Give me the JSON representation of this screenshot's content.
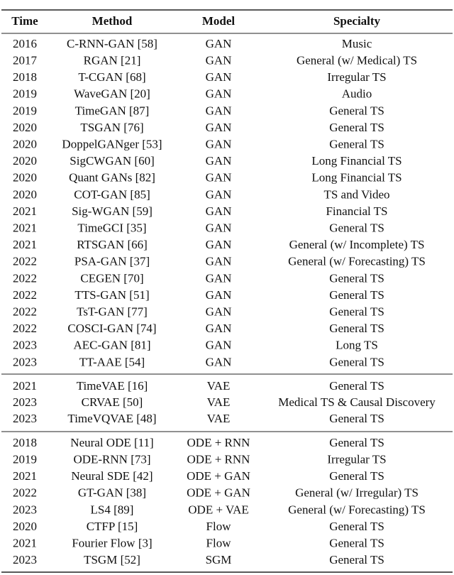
{
  "table": {
    "header": [
      "Time",
      "Method",
      "Model",
      "Specialty"
    ],
    "groups": [
      [
        [
          "2016",
          "C-RNN-GAN [58]",
          "GAN",
          "Music"
        ],
        [
          "2017",
          "RGAN [21]",
          "GAN",
          "General (w/ Medical) TS"
        ],
        [
          "2018",
          "T-CGAN [68]",
          "GAN",
          "Irregular TS"
        ],
        [
          "2019",
          "WaveGAN [20]",
          "GAN",
          "Audio"
        ],
        [
          "2019",
          "TimeGAN [87]",
          "GAN",
          "General TS"
        ],
        [
          "2020",
          "TSGAN [76]",
          "GAN",
          "General TS"
        ],
        [
          "2020",
          "DoppelGANger [53]",
          "GAN",
          "General TS"
        ],
        [
          "2020",
          "SigCWGAN [60]",
          "GAN",
          "Long Financial TS"
        ],
        [
          "2020",
          "Quant GANs [82]",
          "GAN",
          "Long Financial TS"
        ],
        [
          "2020",
          "COT-GAN [85]",
          "GAN",
          "TS and Video"
        ],
        [
          "2021",
          "Sig-WGAN [59]",
          "GAN",
          "Financial TS"
        ],
        [
          "2021",
          "TimeGCI [35]",
          "GAN",
          "General TS"
        ],
        [
          "2021",
          "RTSGAN [66]",
          "GAN",
          "General (w/ Incomplete) TS"
        ],
        [
          "2022",
          "PSA-GAN [37]",
          "GAN",
          "General (w/ Forecasting) TS"
        ],
        [
          "2022",
          "CEGEN [70]",
          "GAN",
          "General TS"
        ],
        [
          "2022",
          "TTS-GAN [51]",
          "GAN",
          "General TS"
        ],
        [
          "2022",
          "TsT-GAN [77]",
          "GAN",
          "General TS"
        ],
        [
          "2022",
          "COSCI-GAN [74]",
          "GAN",
          "General TS"
        ],
        [
          "2023",
          "AEC-GAN [81]",
          "GAN",
          "Long TS"
        ],
        [
          "2023",
          "TT-AAE [54]",
          "GAN",
          "General TS"
        ]
      ],
      [
        [
          "2021",
          "TimeVAE [16]",
          "VAE",
          "General TS"
        ],
        [
          "2023",
          "CRVAE [50]",
          "VAE",
          "Medical TS & Causal Discovery"
        ],
        [
          "2023",
          "TimeVQVAE [48]",
          "VAE",
          "General TS"
        ]
      ],
      [
        [
          "2018",
          "Neural ODE [11]",
          "ODE + RNN",
          "General TS"
        ],
        [
          "2019",
          "ODE-RNN [73]",
          "ODE + RNN",
          "Irregular TS"
        ],
        [
          "2021",
          "Neural SDE [42]",
          "ODE + GAN",
          "General TS"
        ],
        [
          "2022",
          "GT-GAN [38]",
          "ODE + GAN",
          "General (w/ Irregular) TS"
        ],
        [
          "2023",
          "LS4 [89]",
          "ODE + VAE",
          "General (w/ Forecasting) TS"
        ],
        [
          "2020",
          "CTFP [15]",
          "Flow",
          "General TS"
        ],
        [
          "2021",
          "Fourier Flow [3]",
          "Flow",
          "General TS"
        ],
        [
          "2023",
          "TSGM [52]",
          "SGM",
          "General TS"
        ]
      ]
    ]
  }
}
